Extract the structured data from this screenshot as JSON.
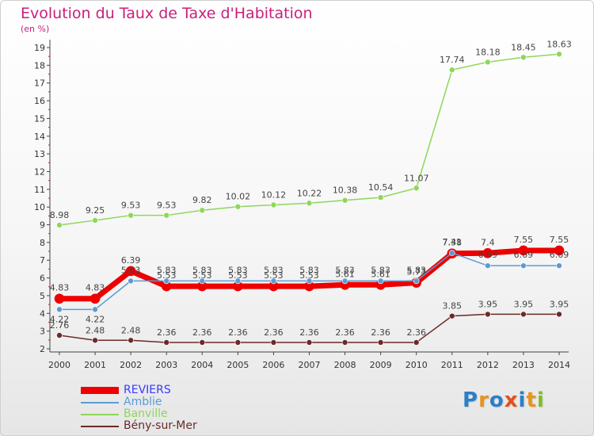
{
  "chart": {
    "title": "Evolution du Taux de Taxe d'Habitation",
    "subtitle": "(en %)"
  },
  "colors": {
    "title": "#c8207a",
    "axis": "#444444",
    "tick_minor": "#d21b1b"
  },
  "logo": {
    "text": "Proxiti",
    "letters": [
      {
        "ch": "P",
        "color": "#2a7fc9"
      },
      {
        "ch": "r",
        "color": "#e8931e"
      },
      {
        "ch": "o",
        "color": "#2a7fc9"
      },
      {
        "ch": "x",
        "color": "#e2521e"
      },
      {
        "ch": "i",
        "color": "#2a7fc9"
      },
      {
        "ch": "t",
        "color": "#e8931e"
      },
      {
        "ch": "i",
        "color": "#7bbf2a"
      }
    ]
  },
  "chart_data": {
    "type": "line",
    "title": "Evolution du Taux de Taxe d'Habitation",
    "subtitle": "(en %)",
    "xlabel": "",
    "ylabel": "",
    "x": [
      "2000",
      "2001",
      "2002",
      "2003",
      "2004",
      "2005",
      "2006",
      "2007",
      "2008",
      "2009",
      "2010",
      "2011",
      "2012",
      "2013",
      "2014"
    ],
    "ylim": [
      2,
      19
    ],
    "yticks": [
      "2",
      "3",
      "4",
      "5",
      "6",
      "7",
      "8",
      "9",
      "10",
      "11",
      "12",
      "13",
      "14",
      "15",
      "16",
      "17",
      "18",
      "19"
    ],
    "legend_position": "bottom-left",
    "grid": false,
    "series": [
      {
        "name": "REVIERS",
        "color": "#ee0000",
        "label_color": "#3a3aff",
        "values": [
          4.83,
          4.83,
          6.39,
          5.53,
          5.53,
          5.53,
          5.53,
          5.53,
          5.61,
          5.61,
          5.73,
          7.38,
          7.4,
          7.55,
          7.55
        ],
        "labels": [
          "4.83",
          "4.83",
          "6.39",
          "5.53",
          "5.53",
          "5.53",
          "5.53",
          "5.53",
          "5.61",
          "5.61",
          "5.73",
          "7.38",
          "7.4",
          "7.55",
          "7.55"
        ]
      },
      {
        "name": "Amblie",
        "color": "#5b9bd5",
        "label_color": "#5b9bd5",
        "values": [
          4.22,
          4.22,
          5.83,
          5.83,
          5.83,
          5.83,
          5.83,
          5.83,
          5.83,
          5.83,
          5.83,
          7.41,
          6.69,
          6.69,
          6.69
        ],
        "labels": [
          "4.22",
          "4.22",
          "5.83",
          "5.83",
          "5.83",
          "5.83",
          "5.83",
          "5.83",
          "5.83",
          "5.83",
          "5.83",
          "7.41",
          "6.69",
          "6.69",
          "6.69"
        ]
      },
      {
        "name": "Banville",
        "color": "#8fd65a",
        "label_color": "#8fd65a",
        "values": [
          8.98,
          9.25,
          9.53,
          9.53,
          9.82,
          10.02,
          10.12,
          10.22,
          10.38,
          10.54,
          11.07,
          17.74,
          18.18,
          18.45,
          18.63
        ],
        "labels": [
          "8.98",
          "9.25",
          "9.53",
          "9.53",
          "9.82",
          "10.02",
          "10.12",
          "10.22",
          "10.38",
          "10.54",
          "11.07",
          "17.74",
          "18.18",
          "18.45",
          "18.63"
        ]
      },
      {
        "name": "Bény-sur-Mer",
        "color": "#6b2a2a",
        "label_color": "#6b2a2a",
        "values": [
          2.76,
          2.48,
          2.48,
          2.36,
          2.36,
          2.36,
          2.36,
          2.36,
          2.36,
          2.36,
          2.36,
          3.85,
          3.95,
          3.95,
          3.95
        ],
        "labels": [
          "2.76",
          "2.48",
          "2.48",
          "2.36",
          "2.36",
          "2.36",
          "2.36",
          "2.36",
          "2.36",
          "2.36",
          "2.36",
          "3.85",
          "3.95",
          "3.95",
          "3.95"
        ]
      }
    ]
  }
}
